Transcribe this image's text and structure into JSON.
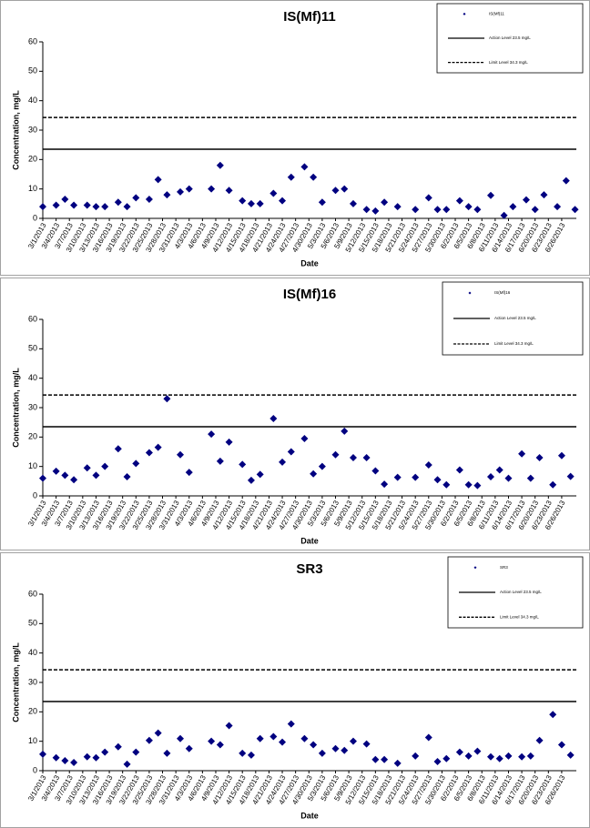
{
  "chart_data": [
    {
      "type": "scatter",
      "title": "IS(Mf)11",
      "x_label": "Date",
      "y_label": "Concentration, mg/L",
      "categories": [
        "3/1/2013",
        "3/4/2013",
        "3/7/2013",
        "3/10/2013",
        "3/13/2013",
        "3/16/2013",
        "3/19/2013",
        "3/22/2013",
        "3/25/2013",
        "3/28/2013",
        "3/31/2013",
        "4/3/2013",
        "4/6/2013",
        "4/9/2013",
        "4/12/2013",
        "4/15/2013",
        "4/18/2013",
        "4/21/2013",
        "4/24/2013",
        "4/27/2013",
        "4/30/2013",
        "5/3/2013",
        "5/6/2013",
        "5/9/2013",
        "5/12/2013",
        "5/15/2013",
        "5/18/2013",
        "5/21/2013",
        "5/24/2013",
        "5/27/2013",
        "5/30/2013",
        "6/2/2013",
        "6/5/2013",
        "6/8/2013",
        "6/11/2013",
        "6/14/2013",
        "6/17/2013",
        "6/20/2013",
        "6/23/2013",
        "6/26/2013"
      ],
      "x": [
        "3/1/2013",
        "3/4/2013",
        "3/6/2013",
        "3/8/2013",
        "3/11/2013",
        "3/13/2013",
        "3/15/2013",
        "3/18/2013",
        "3/20/2013",
        "3/22/2013",
        "3/25/2013",
        "3/27/2013",
        "3/29/2013",
        "4/1/2013",
        "4/3/2013",
        "4/8/2013",
        "4/10/2013",
        "4/12/2013",
        "4/15/2013",
        "4/17/2013",
        "4/19/2013",
        "4/22/2013",
        "4/24/2013",
        "4/26/2013",
        "4/29/2013",
        "5/1/2013",
        "5/3/2013",
        "5/6/2013",
        "5/8/2013",
        "5/10/2013",
        "5/13/2013",
        "5/15/2013",
        "5/17/2013",
        "5/20/2013",
        "5/24/2013",
        "5/27/2013",
        "5/29/2013",
        "5/31/2013",
        "6/3/2013",
        "6/5/2013",
        "6/7/2013",
        "6/10/2013",
        "6/13/2013",
        "6/15/2013",
        "6/18/2013",
        "6/20/2013",
        "6/22/2013",
        "6/25/2013",
        "6/27/2013",
        "6/29/2013"
      ],
      "series": [
        {
          "name": "IS(Mf)11",
          "color": "#000080",
          "values": [
            4,
            4.5,
            6.5,
            4.5,
            4.5,
            4,
            4,
            5.5,
            4,
            7,
            6.5,
            13.2,
            8,
            9,
            10,
            10,
            18,
            9.5,
            6,
            5,
            5,
            8.5,
            6,
            14,
            17.5,
            14,
            5.5,
            9.5,
            10,
            5,
            3,
            2.5,
            5.5,
            4,
            3,
            7,
            3,
            3,
            6,
            4,
            3,
            7.8,
            1,
            4,
            6.3,
            3,
            8,
            4,
            12.8,
            3
          ]
        }
      ],
      "reference_lines": [
        {
          "name": "Action Level 23.5 mg/L",
          "value": 23.5,
          "style": "solid"
        },
        {
          "name": "Limit Level 34.3 mg/L",
          "value": 34.3,
          "style": "dashed"
        }
      ],
      "ylim": [
        0,
        60
      ],
      "yticks": [
        0,
        10,
        20,
        30,
        40,
        50,
        60
      ],
      "legend": "upper right"
    },
    {
      "type": "scatter",
      "title": "IS(Mf)16",
      "x_label": "Date",
      "y_label": "Concentration, mg/L",
      "categories": [
        "3/1/2013",
        "3/4/2013",
        "3/7/2013",
        "3/10/2013",
        "3/13/2013",
        "3/16/2013",
        "3/19/2013",
        "3/22/2013",
        "3/25/2013",
        "3/28/2013",
        "3/31/2013",
        "4/3/2013",
        "4/6/2013",
        "4/9/2013",
        "4/12/2013",
        "4/15/2013",
        "4/18/2013",
        "4/21/2013",
        "4/24/2013",
        "4/27/2013",
        "4/30/2013",
        "5/3/2013",
        "5/6/2013",
        "5/9/2013",
        "5/12/2013",
        "5/15/2013",
        "5/18/2013",
        "5/21/2013",
        "5/24/2013",
        "5/27/2013",
        "5/30/2013",
        "6/2/2013",
        "6/5/2013",
        "6/8/2013",
        "6/11/2013",
        "6/14/2013",
        "6/17/2013",
        "6/20/2013",
        "6/23/2013",
        "6/26/2013"
      ],
      "x": [
        "3/1/2013",
        "3/4/2013",
        "3/6/2013",
        "3/8/2013",
        "3/11/2013",
        "3/13/2013",
        "3/15/2013",
        "3/18/2013",
        "3/20/2013",
        "3/22/2013",
        "3/25/2013",
        "3/27/2013",
        "3/29/2013",
        "4/1/2013",
        "4/3/2013",
        "4/8/2013",
        "4/10/2013",
        "4/12/2013",
        "4/15/2013",
        "4/17/2013",
        "4/19/2013",
        "4/22/2013",
        "4/24/2013",
        "4/26/2013",
        "4/29/2013",
        "5/1/2013",
        "5/3/2013",
        "5/6/2013",
        "5/8/2013",
        "5/10/2013",
        "5/13/2013",
        "5/15/2013",
        "5/17/2013",
        "5/20/2013",
        "5/24/2013",
        "5/27/2013",
        "5/29/2013",
        "5/31/2013",
        "6/3/2013",
        "6/5/2013",
        "6/7/2013",
        "6/10/2013",
        "6/12/2013",
        "6/14/2013",
        "6/17/2013",
        "6/19/2013",
        "6/21/2013",
        "6/24/2013",
        "6/26/2013",
        "6/28/2013"
      ],
      "series": [
        {
          "name": "IS(Mf)16",
          "color": "#000080",
          "values": [
            6,
            8.4,
            7,
            5.5,
            9.5,
            7,
            10,
            16,
            6.5,
            11,
            14.7,
            16.5,
            33,
            14,
            8,
            21,
            11.8,
            18.3,
            10.7,
            5.3,
            7.3,
            26.3,
            11.5,
            15,
            19.5,
            7.5,
            10,
            14,
            22,
            13,
            13,
            8.5,
            4,
            6.3,
            6.3,
            10.5,
            5.5,
            3.8,
            8.8,
            3.8,
            3.5,
            6.5,
            8.8,
            6,
            14.3,
            6,
            13,
            3.8,
            13.7,
            6.6
          ]
        }
      ],
      "reference_lines": [
        {
          "name": "Action Level 23.5 mg/L",
          "value": 23.5,
          "style": "solid"
        },
        {
          "name": "Limit Level 34.3 mg/L",
          "value": 34.3,
          "style": "dashed"
        }
      ],
      "ylim": [
        0,
        60
      ],
      "yticks": [
        0,
        10,
        20,
        30,
        40,
        50,
        60
      ],
      "legend": "upper right"
    },
    {
      "type": "scatter",
      "title": "SR3",
      "x_label": "Date",
      "y_label": "Concentration, mg/L",
      "categories": [
        "3/1/2013",
        "3/4/2013",
        "3/7/2013",
        "3/10/2013",
        "3/13/2013",
        "3/16/2013",
        "3/19/2013",
        "3/22/2013",
        "3/25/2013",
        "3/28/2013",
        "3/31/2013",
        "4/3/2013",
        "4/6/2013",
        "4/9/2013",
        "4/12/2013",
        "4/15/2013",
        "4/18/2013",
        "4/21/2013",
        "4/24/2013",
        "4/27/2013",
        "4/30/2013",
        "5/3/2013",
        "5/6/2013",
        "5/9/2013",
        "5/12/2013",
        "5/15/2013",
        "5/18/2013",
        "5/21/2013",
        "5/24/2013",
        "5/27/2013",
        "5/30/2013",
        "6/2/2013",
        "6/5/2013",
        "6/8/2013",
        "6/11/2013",
        "6/14/2013",
        "6/17/2013",
        "6/20/2013",
        "6/23/2013",
        "6/26/2013"
      ],
      "x": [
        "3/1/2013",
        "3/4/2013",
        "3/6/2013",
        "3/8/2013",
        "3/11/2013",
        "3/13/2013",
        "3/15/2013",
        "3/18/2013",
        "3/20/2013",
        "3/22/2013",
        "3/25/2013",
        "3/27/2013",
        "3/29/2013",
        "4/1/2013",
        "4/3/2013",
        "4/8/2013",
        "4/10/2013",
        "4/12/2013",
        "4/15/2013",
        "4/17/2013",
        "4/19/2013",
        "4/22/2013",
        "4/24/2013",
        "4/26/2013",
        "4/29/2013",
        "5/1/2013",
        "5/3/2013",
        "5/6/2013",
        "5/8/2013",
        "5/10/2013",
        "5/13/2013",
        "5/15/2013",
        "5/17/2013",
        "5/20/2013",
        "5/24/2013",
        "5/27/2013",
        "5/29/2013",
        "5/31/2013",
        "6/3/2013",
        "6/5/2013",
        "6/7/2013",
        "6/10/2013",
        "6/12/2013",
        "6/14/2013",
        "6/17/2013",
        "6/19/2013",
        "6/21/2013",
        "6/24/2013",
        "6/26/2013",
        "6/28/2013"
      ],
      "series": [
        {
          "name": "SR3",
          "color": "#000080",
          "values": [
            5.6,
            4.4,
            3.4,
            2.8,
            4.7,
            4.4,
            6.3,
            8.1,
            2.2,
            6.3,
            10.3,
            12.8,
            5.9,
            10.9,
            7.5,
            10,
            8.8,
            15.3,
            5.9,
            5.3,
            10.9,
            11.6,
            9.7,
            15.9,
            10.9,
            8.8,
            5.9,
            7.5,
            6.9,
            10,
            9.1,
            3.8,
            3.8,
            2.5,
            5,
            11.3,
            3.1,
            4.1,
            6.3,
            5,
            6.6,
            4.7,
            4.1,
            5,
            4.7,
            5,
            10.3,
            19.1,
            8.8,
            5.3
          ]
        }
      ],
      "reference_lines": [
        {
          "name": "Action Level 23.5 mg/L",
          "value": 23.5,
          "style": "solid"
        },
        {
          "name": "Limit Level 34.3 mg/L",
          "value": 34.3,
          "style": "dashed"
        }
      ],
      "ylim": [
        0,
        60
      ],
      "yticks": [
        0,
        10,
        20,
        30,
        40,
        50,
        60
      ],
      "legend": "upper right"
    }
  ]
}
